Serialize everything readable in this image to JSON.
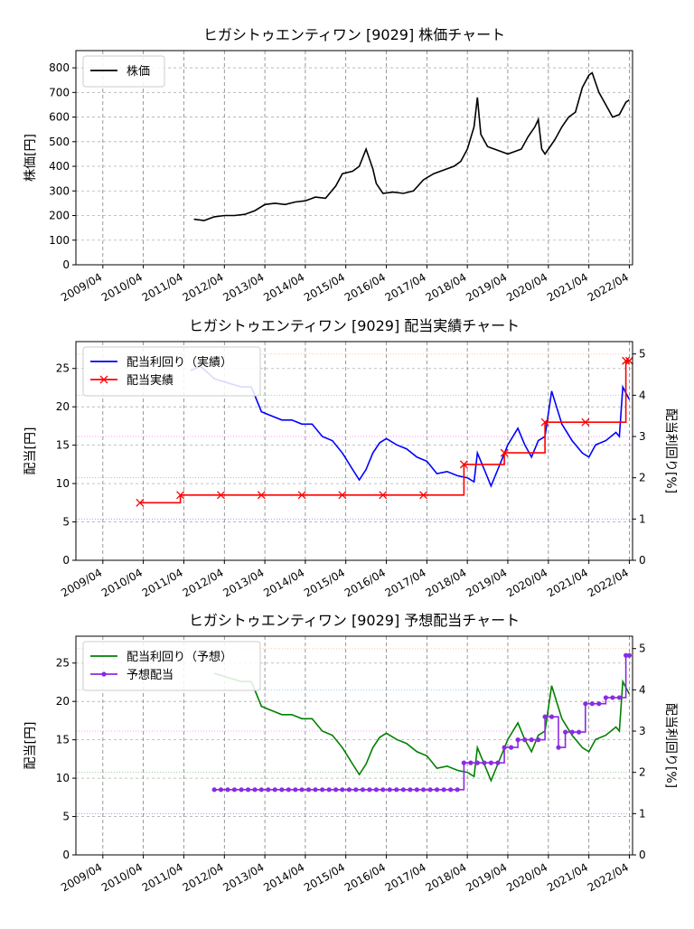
{
  "chart_data": [
    {
      "type": "line",
      "title": "ヒガシトゥエンティワン [9029]  株価チャート",
      "ylabel": "株価[円]",
      "ylim": [
        0,
        870
      ],
      "yticks": [
        0,
        100,
        200,
        300,
        400,
        500,
        600,
        700,
        800
      ],
      "xlim": [
        "2008-08-01",
        "2022-04-30"
      ],
      "xticks": [
        "2009/04",
        "2010/04",
        "2011/04",
        "2012/04",
        "2013/04",
        "2014/04",
        "2015/04",
        "2016/04",
        "2017/04",
        "2018/04",
        "2019/04",
        "2020/04",
        "2021/04",
        "2022/04"
      ],
      "grid": true,
      "legend": "top-left",
      "series": [
        {
          "name": "株価",
          "color": "#000000",
          "x": [
            "2011-07",
            "2011-10",
            "2012-01",
            "2012-04",
            "2012-07",
            "2012-10",
            "2013-01",
            "2013-04",
            "2013-07",
            "2013-10",
            "2014-01",
            "2014-04",
            "2014-07",
            "2014-10",
            "2015-01",
            "2015-03",
            "2015-06",
            "2015-08",
            "2015-10",
            "2015-12",
            "2016-01",
            "2016-03",
            "2016-06",
            "2016-09",
            "2016-12",
            "2017-03",
            "2017-06",
            "2017-09",
            "2017-12",
            "2018-02",
            "2018-04",
            "2018-06",
            "2018-07",
            "2018-08",
            "2018-10",
            "2018-12",
            "2019-02",
            "2019-04",
            "2019-06",
            "2019-08",
            "2019-10",
            "2019-12",
            "2020-01",
            "2020-02",
            "2020-03",
            "2020-04",
            "2020-06",
            "2020-08",
            "2020-10",
            "2020-12",
            "2021-02",
            "2021-04",
            "2021-05",
            "2021-07",
            "2021-09",
            "2021-11",
            "2022-01",
            "2022-03",
            "2022-04"
          ],
          "values": [
            185,
            180,
            195,
            200,
            200,
            205,
            220,
            245,
            250,
            245,
            255,
            260,
            275,
            270,
            320,
            370,
            380,
            400,
            470,
            390,
            330,
            290,
            295,
            290,
            300,
            345,
            370,
            385,
            400,
            420,
            470,
            560,
            680,
            530,
            480,
            470,
            460,
            450,
            460,
            470,
            520,
            560,
            590,
            470,
            450,
            470,
            510,
            560,
            600,
            620,
            720,
            770,
            780,
            700,
            650,
            600,
            610,
            660,
            670
          ]
        }
      ]
    },
    {
      "type": "line",
      "title": "ヒガシトゥエンティワン [9029]  配当実績チャート",
      "ylabel": "配当[円]",
      "ylabel_right": "配当利回り[%]",
      "ylim": [
        0,
        28.5
      ],
      "yticks": [
        0,
        5,
        10,
        15,
        20,
        25
      ],
      "ylim_right": [
        0,
        5.3
      ],
      "yticks_right": [
        0,
        1,
        2,
        3,
        4,
        5
      ],
      "xlim": [
        "2008-08-01",
        "2022-04-30"
      ],
      "xticks": [
        "2009/04",
        "2010/04",
        "2011/04",
        "2012/04",
        "2013/04",
        "2014/04",
        "2015/04",
        "2016/04",
        "2017/04",
        "2018/04",
        "2019/04",
        "2020/04",
        "2021/04",
        "2022/04"
      ],
      "grid": true,
      "legend": "top-left",
      "series": [
        {
          "name": "配当利回り（実績）",
          "axis": "right",
          "color": "#0000ff",
          "x": [
            "2011-06",
            "2011-09",
            "2012-01",
            "2012-05",
            "2012-09",
            "2012-12",
            "2013-03",
            "2013-06",
            "2013-09",
            "2013-12",
            "2014-03",
            "2014-06",
            "2014-09",
            "2014-12",
            "2015-03",
            "2015-06",
            "2015-08",
            "2015-10",
            "2015-12",
            "2016-02",
            "2016-04",
            "2016-07",
            "2016-10",
            "2017-01",
            "2017-04",
            "2017-07",
            "2017-10",
            "2018-01",
            "2018-04",
            "2018-06",
            "2018-07",
            "2018-09",
            "2018-11",
            "2019-01",
            "2019-04",
            "2019-07",
            "2019-09",
            "2019-11",
            "2020-01",
            "2020-03",
            "2020-05",
            "2020-08",
            "2020-11",
            "2021-02",
            "2021-04",
            "2021-06",
            "2021-09",
            "2021-12",
            "2022-01",
            "2022-02",
            "2022-04"
          ],
          "values": [
            4.6,
            4.7,
            4.4,
            4.3,
            4.2,
            4.2,
            3.6,
            3.5,
            3.4,
            3.4,
            3.3,
            3.3,
            3.0,
            2.9,
            2.6,
            2.2,
            1.95,
            2.2,
            2.6,
            2.85,
            2.95,
            2.8,
            2.7,
            2.5,
            2.4,
            2.1,
            2.15,
            2.05,
            2.0,
            1.9,
            2.6,
            2.2,
            1.8,
            2.2,
            2.8,
            3.2,
            2.8,
            2.5,
            2.9,
            3.0,
            4.1,
            3.3,
            2.9,
            2.6,
            2.5,
            2.8,
            2.9,
            3.1,
            3.0,
            4.2,
            3.9
          ]
        },
        {
          "name": "配当実績",
          "axis": "left",
          "color": "#ff0000",
          "marker": "x",
          "x": [
            "2010-03",
            "2011-03",
            "2012-03",
            "2013-03",
            "2014-03",
            "2015-03",
            "2016-03",
            "2017-03",
            "2018-03",
            "2019-03",
            "2020-03",
            "2021-03",
            "2022-03",
            "2022-04"
          ],
          "values": [
            7.5,
            8.5,
            8.5,
            8.5,
            8.5,
            8.5,
            8.5,
            8.5,
            12.5,
            14,
            18,
            18,
            26,
            26
          ]
        }
      ]
    },
    {
      "type": "line",
      "title": "ヒガシトゥエンティワン [9029]  予想配当チャート",
      "ylabel": "配当[円]",
      "ylabel_right": "配当利回り[%]",
      "ylim": [
        0,
        28.5
      ],
      "yticks": [
        0,
        5,
        10,
        15,
        20,
        25
      ],
      "ylim_right": [
        0,
        5.3
      ],
      "yticks_right": [
        0,
        1,
        2,
        3,
        4,
        5
      ],
      "xlim": [
        "2008-08-01",
        "2022-04-30"
      ],
      "xticks": [
        "2009/04",
        "2010/04",
        "2011/04",
        "2012/04",
        "2013/04",
        "2014/04",
        "2015/04",
        "2016/04",
        "2017/04",
        "2018/04",
        "2019/04",
        "2020/04",
        "2021/04",
        "2022/04"
      ],
      "grid": true,
      "legend": "top-left",
      "series": [
        {
          "name": "配当利回り（予想）",
          "axis": "right",
          "color": "#008000",
          "x": [
            "2012-01",
            "2012-05",
            "2012-09",
            "2012-12",
            "2013-03",
            "2013-06",
            "2013-09",
            "2013-12",
            "2014-03",
            "2014-06",
            "2014-09",
            "2014-12",
            "2015-03",
            "2015-06",
            "2015-08",
            "2015-10",
            "2015-12",
            "2016-02",
            "2016-04",
            "2016-07",
            "2016-10",
            "2017-01",
            "2017-04",
            "2017-07",
            "2017-10",
            "2018-01",
            "2018-04",
            "2018-06",
            "2018-07",
            "2018-09",
            "2018-11",
            "2019-01",
            "2019-04",
            "2019-07",
            "2019-09",
            "2019-11",
            "2020-01",
            "2020-03",
            "2020-05",
            "2020-08",
            "2020-11",
            "2021-02",
            "2021-04",
            "2021-06",
            "2021-09",
            "2021-12",
            "2022-01",
            "2022-02",
            "2022-04"
          ],
          "values": [
            4.4,
            4.3,
            4.2,
            4.2,
            3.6,
            3.5,
            3.4,
            3.4,
            3.3,
            3.3,
            3.0,
            2.9,
            2.6,
            2.2,
            1.95,
            2.2,
            2.6,
            2.85,
            2.95,
            2.8,
            2.7,
            2.5,
            2.4,
            2.1,
            2.15,
            2.05,
            2.0,
            1.9,
            2.6,
            2.2,
            1.8,
            2.2,
            2.8,
            3.2,
            2.8,
            2.5,
            2.9,
            3.0,
            4.1,
            3.3,
            2.9,
            2.6,
            2.5,
            2.8,
            2.9,
            3.1,
            3.0,
            4.2,
            3.9
          ]
        },
        {
          "name": "予想配当",
          "axis": "left",
          "color": "#8a2be2",
          "marker": "o",
          "x": [
            "2012-01",
            "2012-03",
            "2012-05",
            "2012-07",
            "2012-09",
            "2012-11",
            "2013-01",
            "2013-03",
            "2013-05",
            "2013-07",
            "2013-09",
            "2013-11",
            "2014-01",
            "2014-03",
            "2014-05",
            "2014-07",
            "2014-09",
            "2014-11",
            "2015-01",
            "2015-03",
            "2015-05",
            "2015-07",
            "2015-09",
            "2015-11",
            "2016-01",
            "2016-03",
            "2016-05",
            "2016-07",
            "2016-09",
            "2016-11",
            "2017-01",
            "2017-03",
            "2017-05",
            "2017-07",
            "2017-09",
            "2017-11",
            "2018-01",
            "2018-03",
            "2018-05",
            "2018-07",
            "2018-09",
            "2018-11",
            "2019-01",
            "2019-03",
            "2019-05",
            "2019-07",
            "2019-09",
            "2019-11",
            "2020-01",
            "2020-03",
            "2020-05",
            "2020-07",
            "2020-09",
            "2020-11",
            "2021-01",
            "2021-03",
            "2021-05",
            "2021-07",
            "2021-09",
            "2021-11",
            "2022-01",
            "2022-03",
            "2022-04"
          ],
          "values": [
            8.5,
            8.5,
            8.5,
            8.5,
            8.5,
            8.5,
            8.5,
            8.5,
            8.5,
            8.5,
            8.5,
            8.5,
            8.5,
            8.5,
            8.5,
            8.5,
            8.5,
            8.5,
            8.5,
            8.5,
            8.5,
            8.5,
            8.5,
            8.5,
            8.5,
            8.5,
            8.5,
            8.5,
            8.5,
            8.5,
            8.5,
            8.5,
            8.5,
            8.5,
            8.5,
            8.5,
            8.5,
            12,
            12,
            12,
            12,
            12,
            12,
            14,
            14,
            15,
            15,
            15,
            15,
            18,
            18,
            14,
            16,
            16,
            16,
            19.7,
            19.7,
            19.7,
            20.5,
            20.5,
            20.5,
            26,
            26
          ]
        }
      ]
    }
  ]
}
